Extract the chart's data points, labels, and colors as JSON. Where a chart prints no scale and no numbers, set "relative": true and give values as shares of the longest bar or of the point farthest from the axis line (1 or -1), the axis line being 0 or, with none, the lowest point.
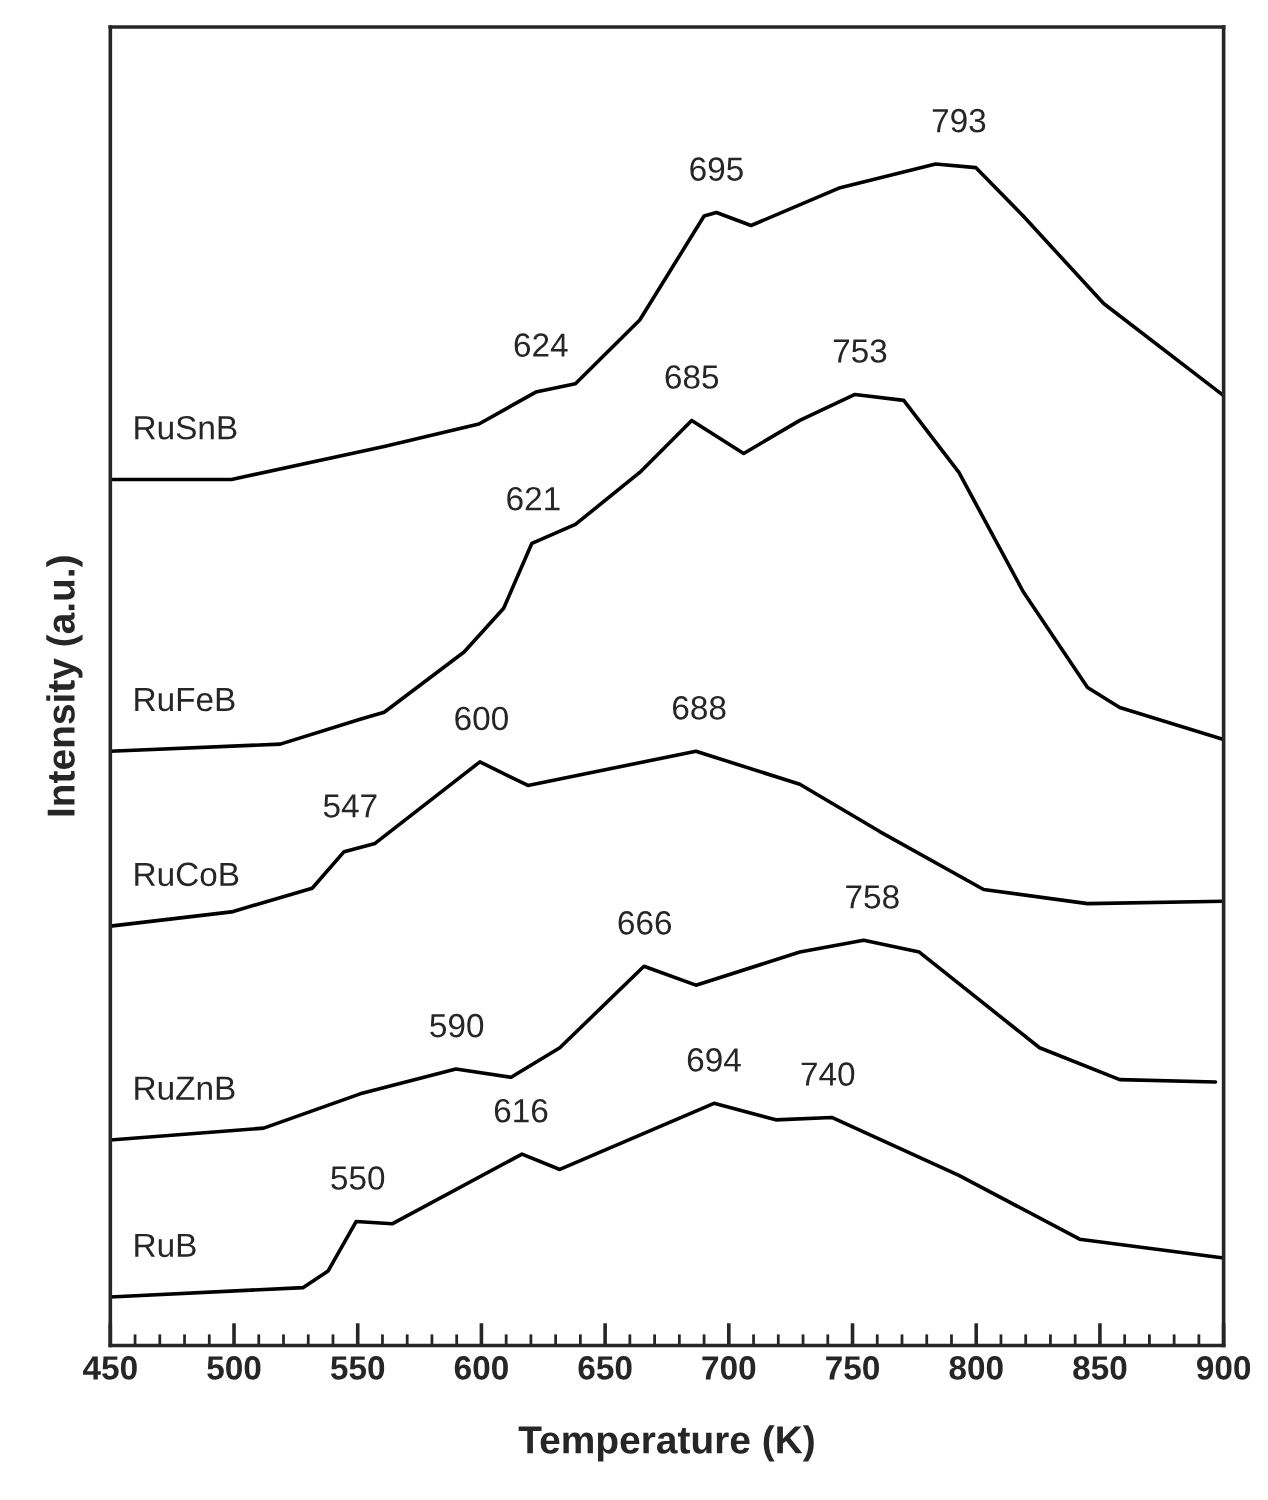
{
  "chart_data": {
    "type": "line",
    "relative": true,
    "xlabel": "Temperature (K)",
    "ylabel": "Intensity (a.u.)",
    "xlim": [
      450,
      900
    ],
    "xticks": [
      450,
      500,
      550,
      600,
      650,
      700,
      750,
      800,
      850,
      900
    ],
    "tick_labels": "x",
    "grid": false,
    "legend": false,
    "marker": "none",
    "line_style": "solid",
    "series": [
      {
        "name": "RuSnB",
        "color": "#000000",
        "x": [
          450,
          499,
          560.7,
          599,
          622,
          638,
          664,
          690,
          695,
          709,
          745,
          783.6,
          799.8,
          819,
          851.5,
          900
        ],
        "values": [
          0.733,
          0.733,
          0.761,
          0.78,
          0.807,
          0.814,
          0.868,
          0.956,
          0.959,
          0.948,
          0.98,
          1.0,
          0.997,
          0.956,
          0.882,
          0.804
        ]
      },
      {
        "name": "RuFeB",
        "color": "#000000",
        "x": [
          450,
          518.7,
          551,
          560.7,
          593,
          609,
          620.4,
          638,
          664,
          685,
          706,
          728.7,
          751,
          770.7,
          793,
          819,
          845,
          858,
          900
        ],
        "values": [
          0.503,
          0.509,
          0.53,
          0.536,
          0.587,
          0.624,
          0.679,
          0.695,
          0.739,
          0.783,
          0.755,
          0.783,
          0.805,
          0.8,
          0.739,
          0.638,
          0.557,
          0.54,
          0.513
        ]
      },
      {
        "name": "RuCoB",
        "color": "#000000",
        "x": [
          450,
          499,
          531.6,
          544.5,
          557,
          599.4,
          618.8,
          686.7,
          728.7,
          761,
          803,
          845,
          900
        ],
        "values": [
          0.355,
          0.367,
          0.387,
          0.418,
          0.425,
          0.494,
          0.474,
          0.503,
          0.475,
          0.435,
          0.386,
          0.374,
          0.376
        ]
      },
      {
        "name": "RuZnB",
        "color": "#000000",
        "x": [
          450,
          512,
          551,
          589.7,
          612,
          631.7,
          665.7,
          686.7,
          728.7,
          754.5,
          777,
          825.6,
          858,
          896.7
        ],
        "values": [
          0.174,
          0.184,
          0.213,
          0.234,
          0.227,
          0.252,
          0.321,
          0.305,
          0.333,
          0.343,
          0.333,
          0.252,
          0.225,
          0.223
        ]
      },
      {
        "name": "RuB",
        "color": "#000000",
        "x": [
          450,
          528,
          538,
          549.4,
          563.9,
          616.4,
          631.7,
          694,
          719,
          741.6,
          793,
          841.8,
          900
        ],
        "values": [
          0.041,
          0.049,
          0.063,
          0.105,
          0.103,
          0.162,
          0.149,
          0.205,
          0.191,
          0.193,
          0.144,
          0.09,
          0.074
        ]
      }
    ],
    "annotations": [
      {
        "text": "624",
        "x": 624,
        "y": 0.81
      },
      {
        "text": "695",
        "x": 695,
        "y": 0.959
      },
      {
        "text": "793",
        "x": 793,
        "y": 1.0
      },
      {
        "text": "621",
        "x": 621,
        "y": 0.68
      },
      {
        "text": "685",
        "x": 685,
        "y": 0.783
      },
      {
        "text": "753",
        "x": 753,
        "y": 0.805
      },
      {
        "text": "547",
        "x": 547,
        "y": 0.42
      },
      {
        "text": "600",
        "x": 600,
        "y": 0.494
      },
      {
        "text": "688",
        "x": 688,
        "y": 0.503
      },
      {
        "text": "590",
        "x": 590,
        "y": 0.234
      },
      {
        "text": "666",
        "x": 666,
        "y": 0.321
      },
      {
        "text": "758",
        "x": 758,
        "y": 0.343
      },
      {
        "text": "550",
        "x": 550,
        "y": 0.105
      },
      {
        "text": "616",
        "x": 616,
        "y": 0.162
      },
      {
        "text": "694",
        "x": 694,
        "y": 0.205
      },
      {
        "text": "740",
        "x": 740,
        "y": 0.193
      }
    ]
  }
}
